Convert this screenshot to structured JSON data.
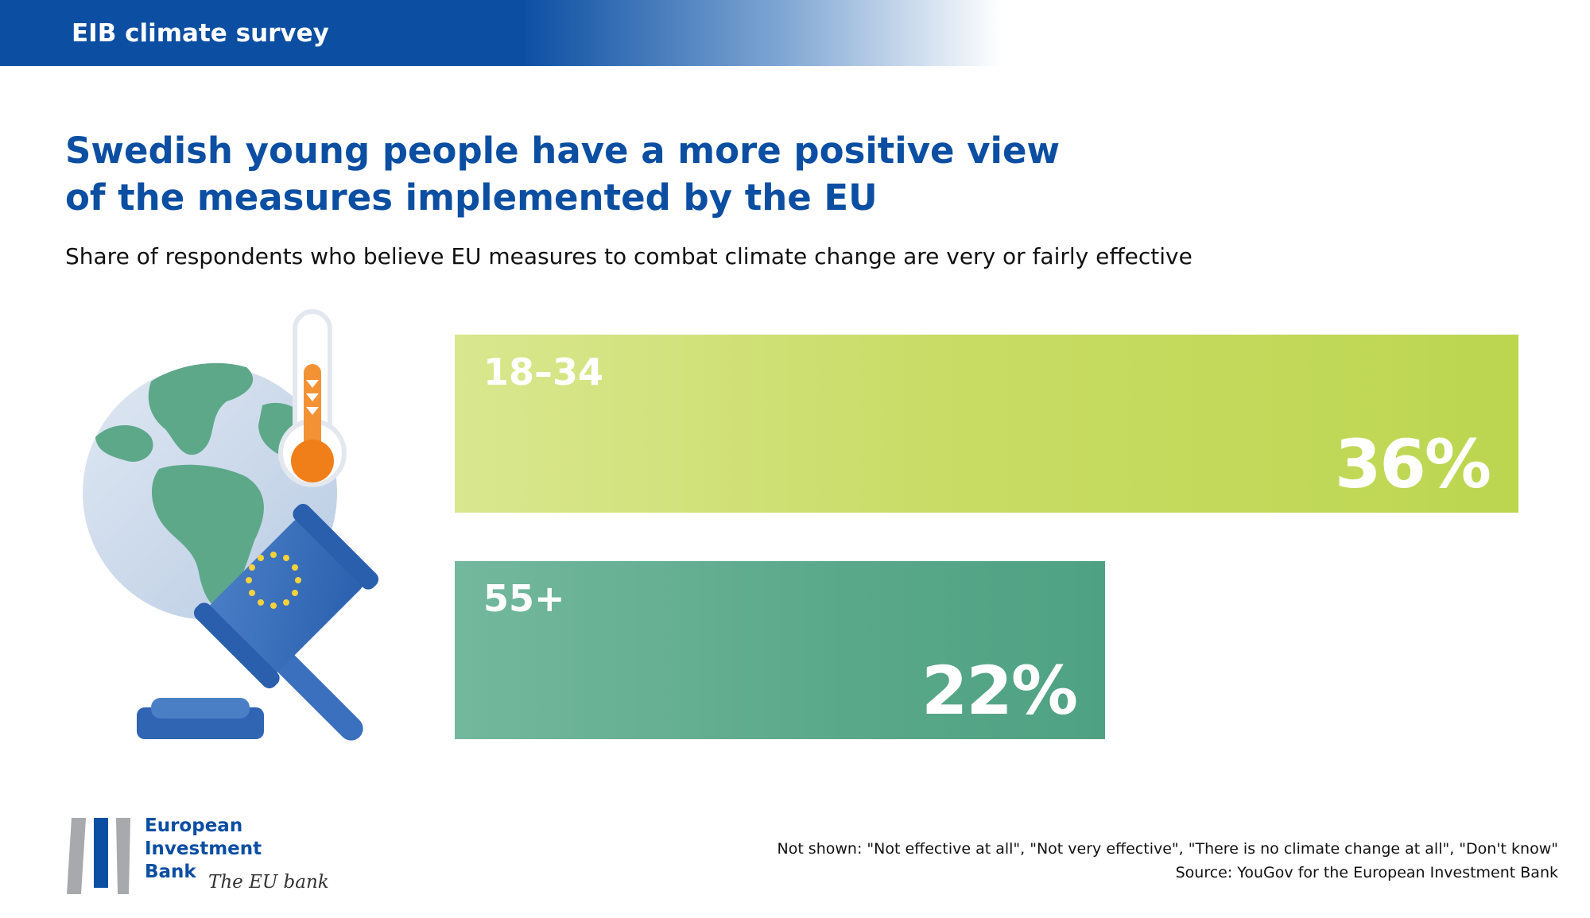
{
  "header": {
    "title": "EIB climate survey"
  },
  "title_lines": [
    "Swedish young people have a more positive view",
    "of the measures implemented by the EU"
  ],
  "subtitle": "Share of respondents who believe EU measures to combat climate change are very or fairly effective",
  "chart_data": {
    "type": "bar",
    "orientation": "horizontal",
    "title": "Swedish young people have a more positive view of the measures implemented by the EU",
    "subtitle": "Share of respondents who believe EU measures to combat climate change are very or fairly effective",
    "categories": [
      "18–34",
      "55+"
    ],
    "values": [
      36,
      22
    ],
    "value_labels": [
      "36%",
      "22%"
    ],
    "unit": "%",
    "xlabel": "",
    "ylabel": "",
    "colors": [
      "#bcd650",
      "#4ea283"
    ]
  },
  "logo": {
    "lines": [
      "European",
      "Investment",
      "Bank"
    ],
    "tagline": "The EU bank"
  },
  "footnotes": {
    "not_shown": "Not shown: \"Not effective at all\", \"Not very effective\", \"There is no climate change at all\", \"Don't know\"",
    "source": "Source: YouGov for the European Investment Bank"
  },
  "illustration_icons": [
    "globe-icon",
    "thermometer-icon",
    "eu-gavel-icon"
  ]
}
